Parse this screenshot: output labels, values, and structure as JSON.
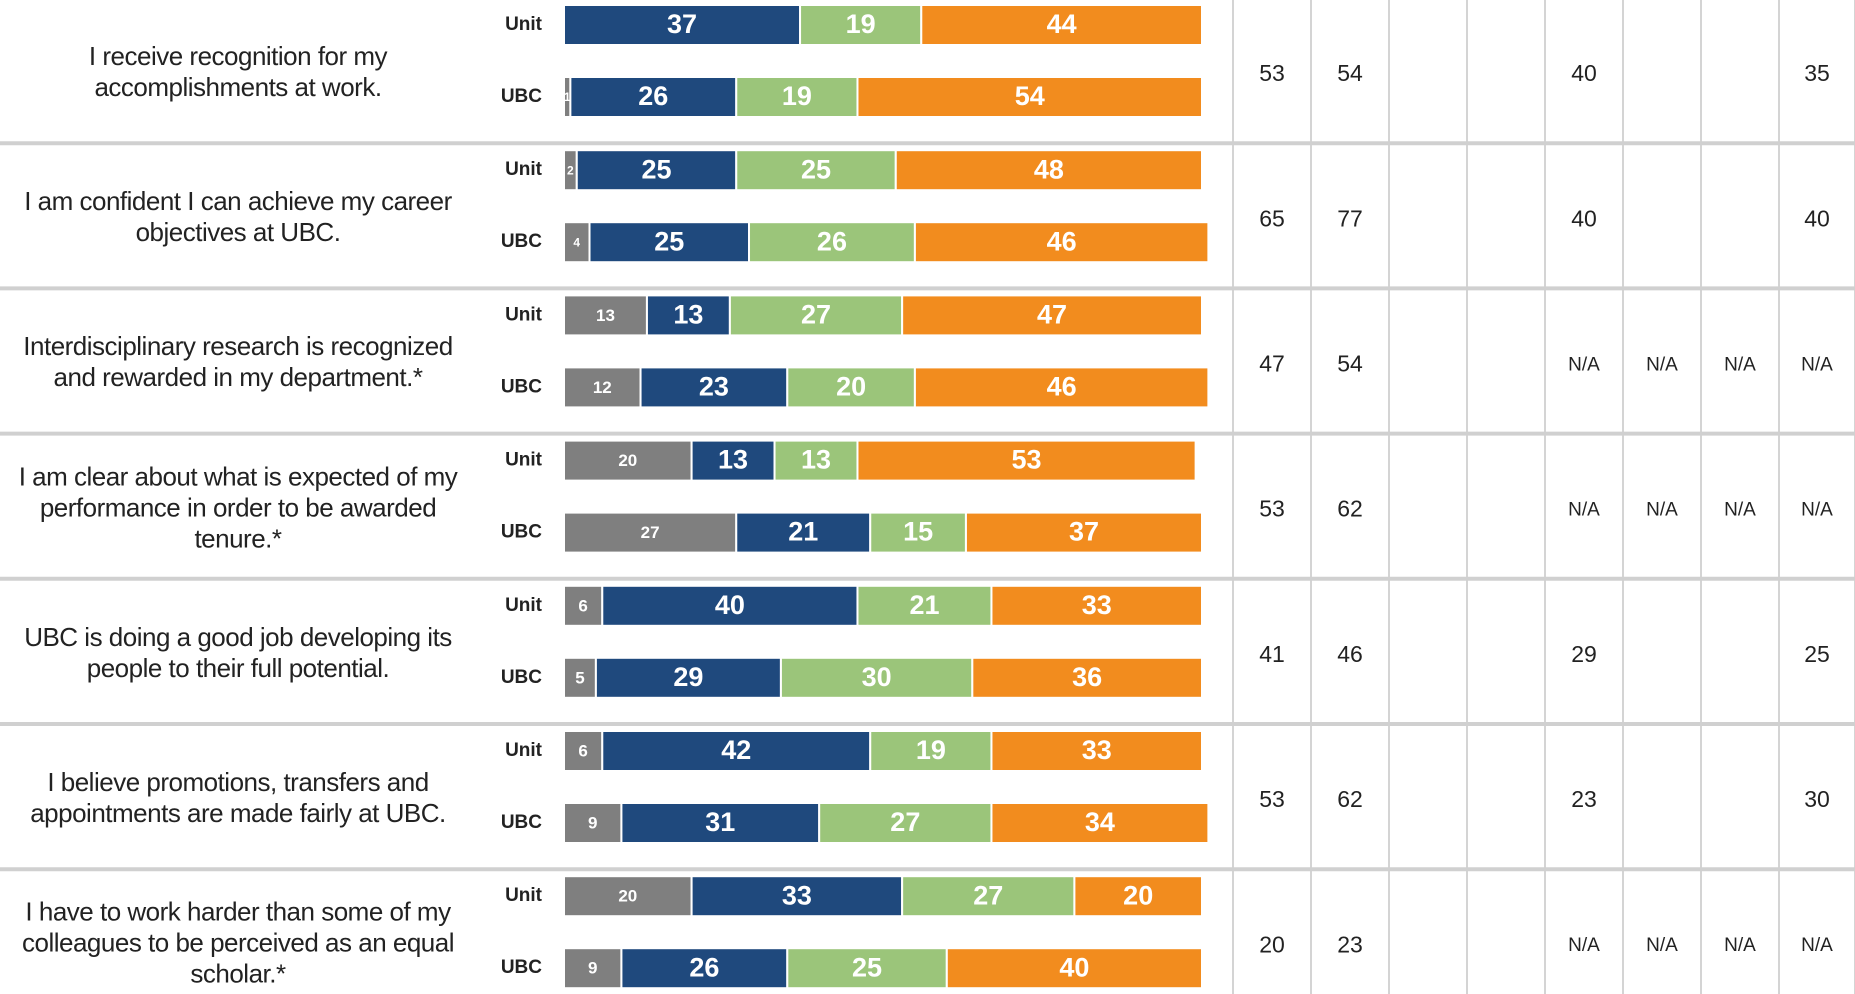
{
  "chart_data": {
    "type": "stacked_bar",
    "xlim": [
      0,
      100
    ],
    "colors": [
      "#7f7f7f",
      "#1f497d",
      "#9bc57a",
      "#f28c1e"
    ],
    "rows": [
      {
        "statement": "I receive recognition for my accomplishments at work.",
        "bars": [
          {
            "label": "Unit",
            "values": [
              null,
              37,
              19,
              44
            ]
          },
          {
            "label": "UBC",
            "values": [
              1,
              26,
              19,
              54
            ]
          }
        ],
        "cells": [
          53,
          54,
          null,
          null,
          40,
          null,
          null,
          35
        ]
      },
      {
        "statement": "I am confident I can achieve my career objectives at UBC.",
        "bars": [
          {
            "label": "Unit",
            "values": [
              2,
              25,
              25,
              48
            ]
          },
          {
            "label": "UBC",
            "values": [
              4,
              25,
              26,
              46
            ]
          }
        ],
        "cells": [
          65,
          77,
          null,
          null,
          40,
          null,
          null,
          40
        ]
      },
      {
        "statement": "Interdisciplinary research is recognized and rewarded in my department.*",
        "bars": [
          {
            "label": "Unit",
            "values": [
              13,
              13,
              27,
              47
            ]
          },
          {
            "label": "UBC",
            "values": [
              12,
              23,
              20,
              46
            ]
          }
        ],
        "cells": [
          47,
          54,
          null,
          null,
          "N/A",
          "N/A",
          "N/A",
          "N/A"
        ]
      },
      {
        "statement": "I am clear about what is expected of my performance in order to be awarded tenure.*",
        "bars": [
          {
            "label": "Unit",
            "values": [
              20,
              13,
              13,
              53
            ]
          },
          {
            "label": "UBC",
            "values": [
              27,
              21,
              15,
              37
            ]
          }
        ],
        "cells": [
          53,
          62,
          null,
          null,
          "N/A",
          "N/A",
          "N/A",
          "N/A"
        ]
      },
      {
        "statement": "UBC is doing a good job developing its people to their full potential.",
        "bars": [
          {
            "label": "Unit",
            "values": [
              6,
              40,
              21,
              33
            ]
          },
          {
            "label": "UBC",
            "values": [
              5,
              29,
              30,
              36
            ]
          }
        ],
        "cells": [
          41,
          46,
          null,
          null,
          29,
          null,
          null,
          25
        ]
      },
      {
        "statement": "I believe promotions, transfers and appointments are made fairly at UBC.",
        "bars": [
          {
            "label": "Unit",
            "values": [
              6,
              42,
              19,
              33
            ]
          },
          {
            "label": "UBC",
            "values": [
              9,
              31,
              27,
              34
            ]
          }
        ],
        "cells": [
          53,
          62,
          null,
          null,
          23,
          null,
          null,
          30
        ]
      },
      {
        "statement": "I have to work harder than some of my colleagues to be perceived as an equal scholar.*",
        "bars": [
          {
            "label": "Unit",
            "values": [
              20,
              33,
              27,
              20
            ]
          },
          {
            "label": "UBC",
            "values": [
              9,
              26,
              25,
              40
            ]
          }
        ],
        "cells": [
          20,
          23,
          null,
          null,
          "N/A",
          "N/A",
          "N/A",
          "N/A"
        ]
      }
    ]
  }
}
